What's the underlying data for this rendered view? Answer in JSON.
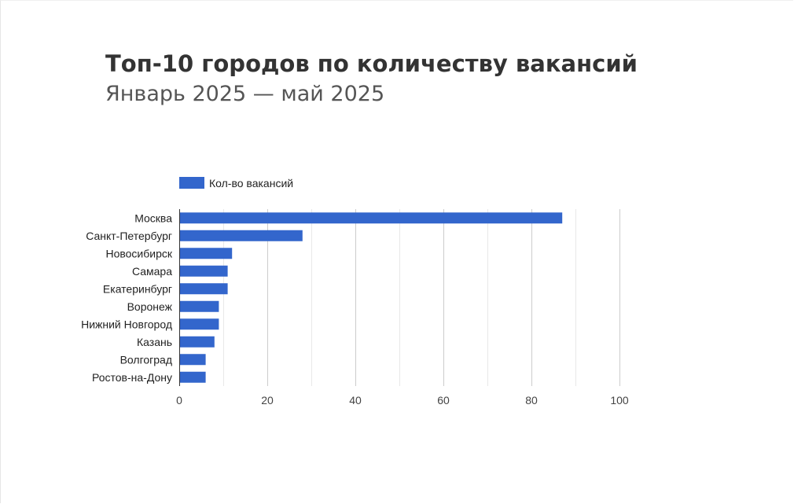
{
  "chart_data": {
    "type": "bar",
    "orientation": "horizontal",
    "title": "Топ-10 городов по количеству вакансий",
    "subtitle": "Январь 2025 — май 2025",
    "legend": {
      "label": "Кол-во вакансий",
      "position": "top-left"
    },
    "categories": [
      "Москва",
      "Санкт-Петербург",
      "Новосибирск",
      "Самара",
      "Екатеринбург",
      "Воронеж",
      "Нижний Новгород",
      "Казань",
      "Волгоград",
      "Ростов-на-Дону"
    ],
    "series": [
      {
        "name": "Кол-во вакансий",
        "values": [
          87,
          28,
          12,
          11,
          11,
          9,
          9,
          8,
          6,
          6
        ]
      }
    ],
    "xlim": [
      0,
      100
    ],
    "xticks": [
      0,
      20,
      40,
      60,
      80,
      100
    ],
    "grid": true,
    "xlabel": "",
    "ylabel": "",
    "colors": {
      "bar": "#3366cc",
      "grid": "#cccccc",
      "minorGrid": "#e8e8e8",
      "axis": "#333333",
      "text": "#222222",
      "tick": "#444444"
    }
  }
}
